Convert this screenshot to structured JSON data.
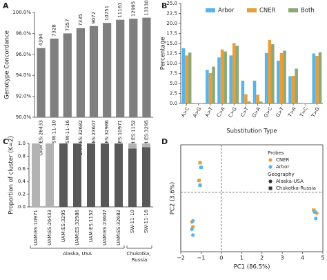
{
  "chart_data": [
    {
      "type": "bar",
      "panel": "A",
      "ylabel": "Genotype Concordance",
      "color": "#7f7f7f",
      "categories": [
        "UAM:ES:26433",
        "SW-11-10",
        "SW-11-16",
        "UAM:ES:32682",
        "UAM:ES:23607",
        "UAM:ES:32986",
        "UAM:ES:10971",
        "UAM:ES:1152",
        "UAM:ES:3295"
      ],
      "values": [
        96.6,
        97.5,
        98.0,
        98.5,
        98.7,
        99.0,
        99.3,
        99.4,
        99.5
      ],
      "counts": [
        4394,
        7328,
        7357,
        7335,
        9072,
        10751,
        11161,
        12995,
        13330
      ],
      "ylim": [
        90,
        100
      ],
      "yticks": [
        {
          "value": 90,
          "label": "90.0%"
        },
        {
          "value": 92,
          "label": "92.0%"
        },
        {
          "value": 94,
          "label": "94.0%"
        },
        {
          "value": 96,
          "label": "96.0%"
        },
        {
          "value": 98,
          "label": "98.0%"
        },
        {
          "value": 100,
          "label": "100.0%"
        }
      ]
    },
    {
      "type": "grouped_bar",
      "panel": "B",
      "ylabel": "Percentage",
      "xlabel": "Substitution Type",
      "categories": [
        "A>C",
        "A>G",
        "A>T",
        "C>A",
        "C>G",
        "C>T",
        "G>A",
        "G>C",
        "G>T",
        "T>A",
        "T>C",
        "T>G"
      ],
      "series": [
        {
          "name": "Arbor",
          "color": "#5ab4e5",
          "values": [
            13.8,
            0.1,
            8.4,
            11.5,
            12.0,
            5.7,
            5.7,
            12.6,
            10.7,
            6.8,
            0.1,
            12.5
          ]
        },
        {
          "name": "CNER",
          "color": "#e69f3c",
          "values": [
            12.0,
            0.1,
            7.6,
            13.5,
            15.1,
            2.3,
            2.2,
            15.9,
            12.6,
            6.9,
            0.1,
            11.9
          ]
        },
        {
          "name": "Both",
          "color": "#8fa876",
          "values": [
            12.7,
            0.1,
            9.2,
            13.0,
            14.4,
            0.5,
            0.5,
            14.8,
            13.2,
            8.7,
            0.1,
            12.8
          ]
        }
      ],
      "ylim": [
        0,
        25
      ],
      "yticks": [
        {
          "value": 0,
          "label": "0.0"
        },
        2.5,
        {
          "value": 5,
          "label": "5.0"
        },
        7.5,
        {
          "value": 10,
          "label": "10.0"
        },
        12.5,
        {
          "value": 15,
          "label": "15.0"
        },
        17.5,
        {
          "value": 20,
          "label": "20.0"
        },
        22.5,
        {
          "value": 25,
          "label": "25.0"
        }
      ],
      "legend": "upper right"
    },
    {
      "type": "stacked_bar",
      "panel": "C",
      "ylabel": "Proportion of cluster (K=2)",
      "categories": [
        "UAM:ES:10971",
        "UAM:ES:26433",
        "UAM:ES:3295",
        "UAM:ES:32986",
        "UAM:ES:1152",
        "UAM:ES:23607",
        "UAM:ES:32682",
        "SW-11-10",
        "SW-11-16"
      ],
      "series": [
        {
          "color": "#595959",
          "values": [
            0,
            0,
            1,
            1,
            1,
            1,
            1,
            0.92,
            0.94
          ]
        },
        {
          "color": "#b3b3b3",
          "values": [
            1,
            1,
            0,
            0,
            0,
            0,
            0,
            0.08,
            0.06
          ]
        }
      ],
      "groups": [
        {
          "label": "Alaska, USA",
          "size": 7
        },
        {
          "label": "Chukotka, Russia",
          "size": 2
        }
      ],
      "ylim": [
        0,
        1
      ],
      "yticks": [
        {
          "value": 0,
          "label": "0.0"
        },
        0.2,
        0.4,
        0.6,
        0.8,
        {
          "value": 1,
          "label": "1.0"
        }
      ]
    },
    {
      "type": "scatter",
      "panel": "D",
      "xlabel": "PC1 (86.5%)",
      "ylabel": "PC2 (3.6%)",
      "legend_title": "Probes",
      "geography_title": "Geography",
      "geographies": [
        {
          "name": "Alaska-USA",
          "marker": "circle"
        },
        {
          "name": "Chukotka-Russia",
          "marker": "square"
        }
      ],
      "series": [
        {
          "name": "CNER",
          "color": "#e69f3c",
          "groups": [
            {
              "x": [
                -1.45,
                -1.4,
                4.7
              ],
              "y": [
                -0.5,
                -0.58,
                -0.35
              ]
            },
            {
              "x": [
                -1.05,
                -1.1,
                4.55
              ],
              "y": [
                0.5,
                0.2,
                -0.3
              ]
            }
          ]
        },
        {
          "name": "Arbor",
          "color": "#5ab4e5",
          "groups": [
            {
              "x": [
                -1.4,
                -1.45,
                -1.4,
                4.65
              ],
              "y": [
                -0.48,
                -0.62,
                -0.72,
                -0.44
              ]
            },
            {
              "x": [
                -1.0,
                -1.05,
                4.6
              ],
              "y": [
                0.42,
                0.12,
                -0.33
              ]
            }
          ]
        }
      ],
      "xlim": [
        -2,
        5
      ],
      "ylim": [
        -1,
        0.8
      ],
      "xticks": [
        {
          "value": -2,
          "label": "−2"
        },
        {
          "value": -1,
          "label": "−1"
        },
        0,
        1,
        2,
        3,
        4,
        5
      ],
      "hlines": [
        0
      ],
      "vlines": [
        0
      ],
      "legend": "upper right"
    }
  ]
}
